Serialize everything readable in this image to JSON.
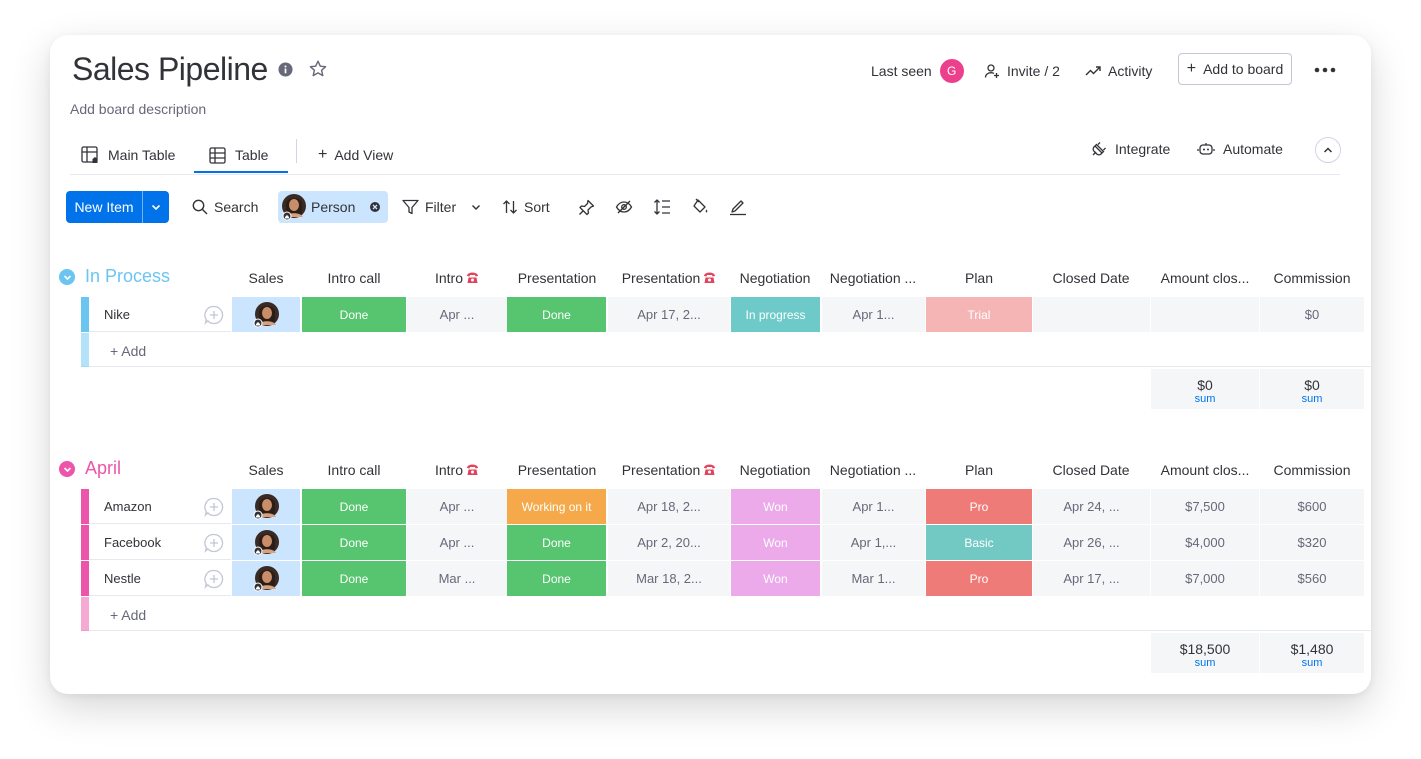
{
  "header": {
    "title": "Sales Pipeline",
    "description": "Add board description",
    "last_seen_label": "Last seen",
    "last_seen_avatar_initial": "G",
    "invite_label": "Invite / 2",
    "activity_label": "Activity",
    "add_to_board_label": "Add to board"
  },
  "views": {
    "tabs": [
      {
        "label": "Main Table",
        "icon": "main-table-icon",
        "active": false
      },
      {
        "label": "Table",
        "icon": "table-icon",
        "active": true
      }
    ],
    "add_view_label": "Add View",
    "integrate_label": "Integrate",
    "automate_label": "Automate"
  },
  "toolbar": {
    "new_item_label": "New Item",
    "search_label": "Search",
    "person_label": "Person",
    "filter_label": "Filter",
    "sort_label": "Sort",
    "icons": [
      "pin-icon",
      "hide-icon",
      "row-height-icon",
      "color-icon",
      "formula-icon"
    ]
  },
  "columns": {
    "sales": "Sales",
    "intro_call": "Intro call",
    "intro_date": "Intro",
    "presentation": "Presentation",
    "presentation_date": "Presentation",
    "negotiation": "Negotiation",
    "negotiation_date": "Negotiation ...",
    "plan": "Plan",
    "closed_date": "Closed Date",
    "amount": "Amount clos...",
    "commission": "Commission"
  },
  "colors": {
    "done": "#57c46f",
    "working": "#f5a94b",
    "in_progress": "#6ecac8",
    "won": "#ecaaea",
    "trial": "#f5b5b5",
    "pro": "#ee7b78",
    "basic": "#72c9c4",
    "group_in_process": "#6ac5f1",
    "group_april": "#ec55a9",
    "brand_blue": "#0073ea"
  },
  "groups": [
    {
      "name": "In Process",
      "color": "#6ac5f1",
      "rows": [
        {
          "name": "Nike",
          "intro_call": {
            "label": "Done",
            "color": "#57c46f"
          },
          "intro_date": "Apr ...",
          "presentation": {
            "label": "Done",
            "color": "#57c46f"
          },
          "presentation_date": "Apr 17, 2...",
          "negotiation": {
            "label": "In progress",
            "color": "#6ecac8"
          },
          "negotiation_date": "Apr 1...",
          "plan": {
            "label": "Trial",
            "color": "#f5b5b5"
          },
          "closed_date": "",
          "amount": "",
          "commission": "$0"
        }
      ],
      "add_label": "+ Add",
      "sums": {
        "amount": "$0",
        "commission": "$0",
        "label": "sum"
      }
    },
    {
      "name": "April",
      "color": "#ec55a9",
      "rows": [
        {
          "name": "Amazon",
          "intro_call": {
            "label": "Done",
            "color": "#57c46f"
          },
          "intro_date": "Apr ...",
          "presentation": {
            "label": "Working on it",
            "color": "#f5a94b"
          },
          "presentation_date": "Apr 18, 2...",
          "negotiation": {
            "label": "Won",
            "color": "#ecaaea"
          },
          "negotiation_date": "Apr 1...",
          "plan": {
            "label": "Pro",
            "color": "#ee7b78"
          },
          "closed_date": "Apr 24, ...",
          "amount": "$7,500",
          "commission": "$600"
        },
        {
          "name": "Facebook",
          "intro_call": {
            "label": "Done",
            "color": "#57c46f"
          },
          "intro_date": "Apr ...",
          "presentation": {
            "label": "Done",
            "color": "#57c46f"
          },
          "presentation_date": "Apr 2, 20...",
          "negotiation": {
            "label": "Won",
            "color": "#ecaaea"
          },
          "negotiation_date": "Apr 1,...",
          "plan": {
            "label": "Basic",
            "color": "#72c9c4"
          },
          "closed_date": "Apr 26, ...",
          "amount": "$4,000",
          "commission": "$320"
        },
        {
          "name": "Nestle",
          "intro_call": {
            "label": "Done",
            "color": "#57c46f"
          },
          "intro_date": "Mar ...",
          "presentation": {
            "label": "Done",
            "color": "#57c46f"
          },
          "presentation_date": "Mar 18, 2...",
          "negotiation": {
            "label": "Won",
            "color": "#ecaaea"
          },
          "negotiation_date": "Mar 1...",
          "plan": {
            "label": "Pro",
            "color": "#ee7b78"
          },
          "closed_date": "Apr 17, ...",
          "amount": "$7,000",
          "commission": "$560"
        }
      ],
      "add_label": "+ Add",
      "sums": {
        "amount": "$18,500",
        "commission": "$1,480",
        "label": "sum"
      }
    }
  ]
}
